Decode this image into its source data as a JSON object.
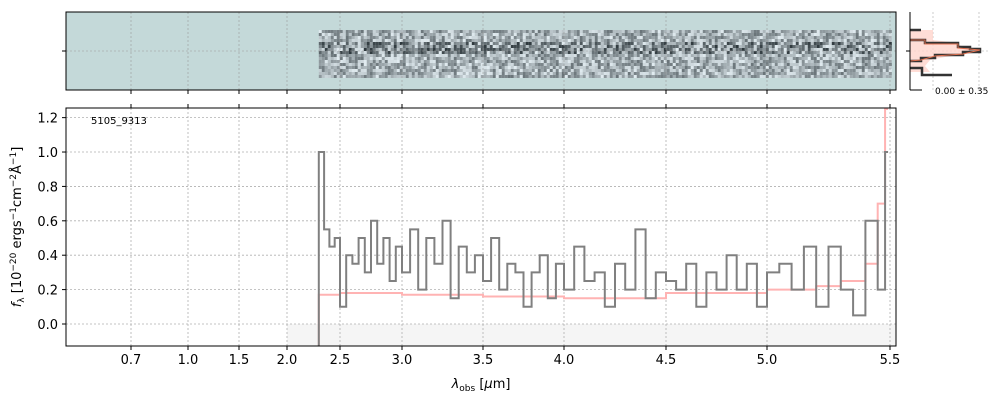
{
  "chart_data": {
    "type": "line",
    "object_id": "5105_9313",
    "xlabel": "λobs [μm]",
    "ylabel": "fλ [10^-20 ergs^-1 cm^-2 Å^-1]",
    "xticks": [
      0.7,
      1.0,
      1.5,
      2.0,
      2.5,
      3.0,
      3.5,
      4.0,
      4.5,
      5.0,
      5.5
    ],
    "xtick_labels": [
      "0.7",
      "1.0",
      "1.5",
      "2.0",
      "2.5",
      "3.0",
      "3.5",
      "4.0",
      "4.5",
      "5.0",
      "5.5"
    ],
    "yticks": [
      0.0,
      0.2,
      0.4,
      0.6,
      0.8,
      1.0,
      1.2
    ],
    "ytick_labels": [
      "0.0",
      "0.2",
      "0.4",
      "0.6",
      "0.8",
      "1.0",
      "1.2"
    ],
    "ylim": [
      -0.128,
      1.256
    ],
    "grid": true,
    "series": [
      {
        "name": "flux",
        "color": "#808080",
        "x": [
          2.3,
          2.35,
          2.4,
          2.45,
          2.5,
          2.55,
          2.6,
          2.65,
          2.7,
          2.75,
          2.8,
          2.85,
          2.9,
          2.95,
          3.0,
          3.05,
          3.1,
          3.15,
          3.2,
          3.25,
          3.3,
          3.35,
          3.4,
          3.45,
          3.5,
          3.55,
          3.6,
          3.65,
          3.7,
          3.75,
          3.8,
          3.85,
          3.9,
          3.95,
          4.0,
          4.05,
          4.1,
          4.15,
          4.2,
          4.25,
          4.3,
          4.35,
          4.4,
          4.45,
          4.5,
          4.55,
          4.6,
          4.65,
          4.7,
          4.75,
          4.8,
          4.85,
          4.9,
          4.95,
          5.0,
          5.05,
          5.1,
          5.15,
          5.2,
          5.25,
          5.3,
          5.35,
          5.4,
          5.45,
          5.48
        ],
        "y": [
          1.0,
          0.55,
          0.45,
          0.5,
          0.1,
          0.4,
          0.35,
          0.5,
          0.3,
          0.6,
          0.35,
          0.5,
          0.25,
          0.45,
          0.3,
          0.55,
          0.2,
          0.5,
          0.35,
          0.6,
          0.15,
          0.45,
          0.3,
          0.4,
          0.25,
          0.5,
          0.2,
          0.35,
          0.3,
          0.1,
          0.3,
          0.4,
          0.15,
          0.35,
          0.2,
          0.45,
          0.25,
          0.3,
          0.1,
          0.35,
          0.2,
          0.55,
          0.15,
          0.3,
          0.25,
          0.2,
          0.35,
          0.1,
          0.3,
          0.2,
          0.4,
          0.2,
          0.35,
          0.1,
          0.3,
          0.35,
          0.2,
          0.45,
          0.1,
          0.45,
          0.2,
          0.05,
          0.6,
          0.2,
          1.0
        ]
      },
      {
        "name": "error",
        "color": "#ffb3b3",
        "x": [
          2.3,
          2.5,
          3.0,
          3.5,
          4.0,
          4.5,
          5.0,
          5.2,
          5.3,
          5.4,
          5.45,
          5.48
        ],
        "y": [
          0.17,
          0.18,
          0.17,
          0.16,
          0.15,
          0.18,
          0.2,
          0.22,
          0.25,
          0.35,
          0.7,
          1.25
        ]
      }
    ],
    "histogram_label": "0.00 ± 0.35"
  }
}
